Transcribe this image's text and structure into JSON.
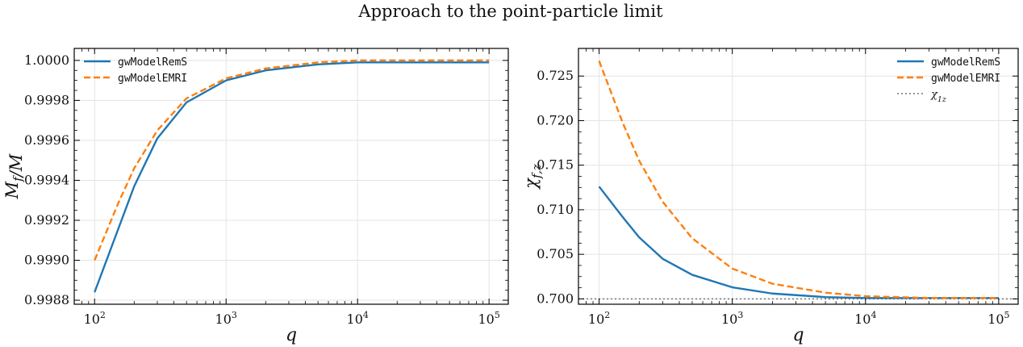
{
  "figure": {
    "suptitle": "Approach to the point-particle limit"
  },
  "chart_data": [
    {
      "type": "line",
      "xscale": "log",
      "xlim": [
        70,
        140000
      ],
      "ylim": [
        0.99878,
        1.00006
      ],
      "xlabel": "q",
      "ylabel": "M_f/M",
      "x_ticks": [
        "10^2",
        "10^3",
        "10^4",
        "10^5"
      ],
      "y_ticks": [
        "0.9988",
        "0.9990",
        "0.9992",
        "0.9994",
        "0.9996",
        "0.9998",
        "1.0000"
      ],
      "grid": true,
      "legend_position": "upper left",
      "x": [
        100,
        150,
        200,
        300,
        500,
        1000,
        2000,
        5000,
        10000,
        30000,
        100000
      ],
      "series": [
        {
          "name": "gwModelRemS",
          "color": "#1f77b4",
          "dash": "solid",
          "values": [
            0.99884,
            0.99915,
            0.99937,
            0.99961,
            0.99979,
            0.9999,
            0.99995,
            0.99998,
            0.99999,
            0.99999,
            0.99999
          ]
        },
        {
          "name": "gwModelEMRI",
          "color": "#ff7f0e",
          "dash": "dashed",
          "values": [
            0.999,
            0.99928,
            0.99946,
            0.99965,
            0.99981,
            0.99991,
            0.99996,
            0.99999,
            1.0,
            1.0,
            1.0
          ]
        }
      ]
    },
    {
      "type": "line",
      "xscale": "log",
      "xlim": [
        70,
        140000
      ],
      "ylim": [
        0.6994,
        0.7281
      ],
      "xlabel": "q",
      "ylabel": "χ_{f,z}",
      "x_ticks": [
        "10^2",
        "10^3",
        "10^4",
        "10^5"
      ],
      "y_ticks": [
        "0.700",
        "0.705",
        "0.710",
        "0.715",
        "0.720",
        "0.725"
      ],
      "grid": true,
      "legend_position": "upper right",
      "x": [
        100,
        150,
        200,
        300,
        500,
        1000,
        2000,
        5000,
        10000,
        30000,
        100000
      ],
      "series": [
        {
          "name": "gwModelRemS",
          "color": "#1f77b4",
          "dash": "solid",
          "values": [
            0.7126,
            0.7092,
            0.7069,
            0.7045,
            0.7027,
            0.7013,
            0.7006,
            0.7002,
            0.7001,
            0.7001,
            0.7001
          ]
        },
        {
          "name": "gwModelEMRI",
          "color": "#ff7f0e",
          "dash": "dashed",
          "values": [
            0.7267,
            0.7198,
            0.7155,
            0.7109,
            0.7068,
            0.7034,
            0.7017,
            0.7007,
            0.7003,
            0.7001,
            0.7001
          ]
        }
      ],
      "reference_line": {
        "name": "χ_{1z}",
        "value": 0.7,
        "color": "#777777",
        "dash": "dotted"
      }
    }
  ]
}
